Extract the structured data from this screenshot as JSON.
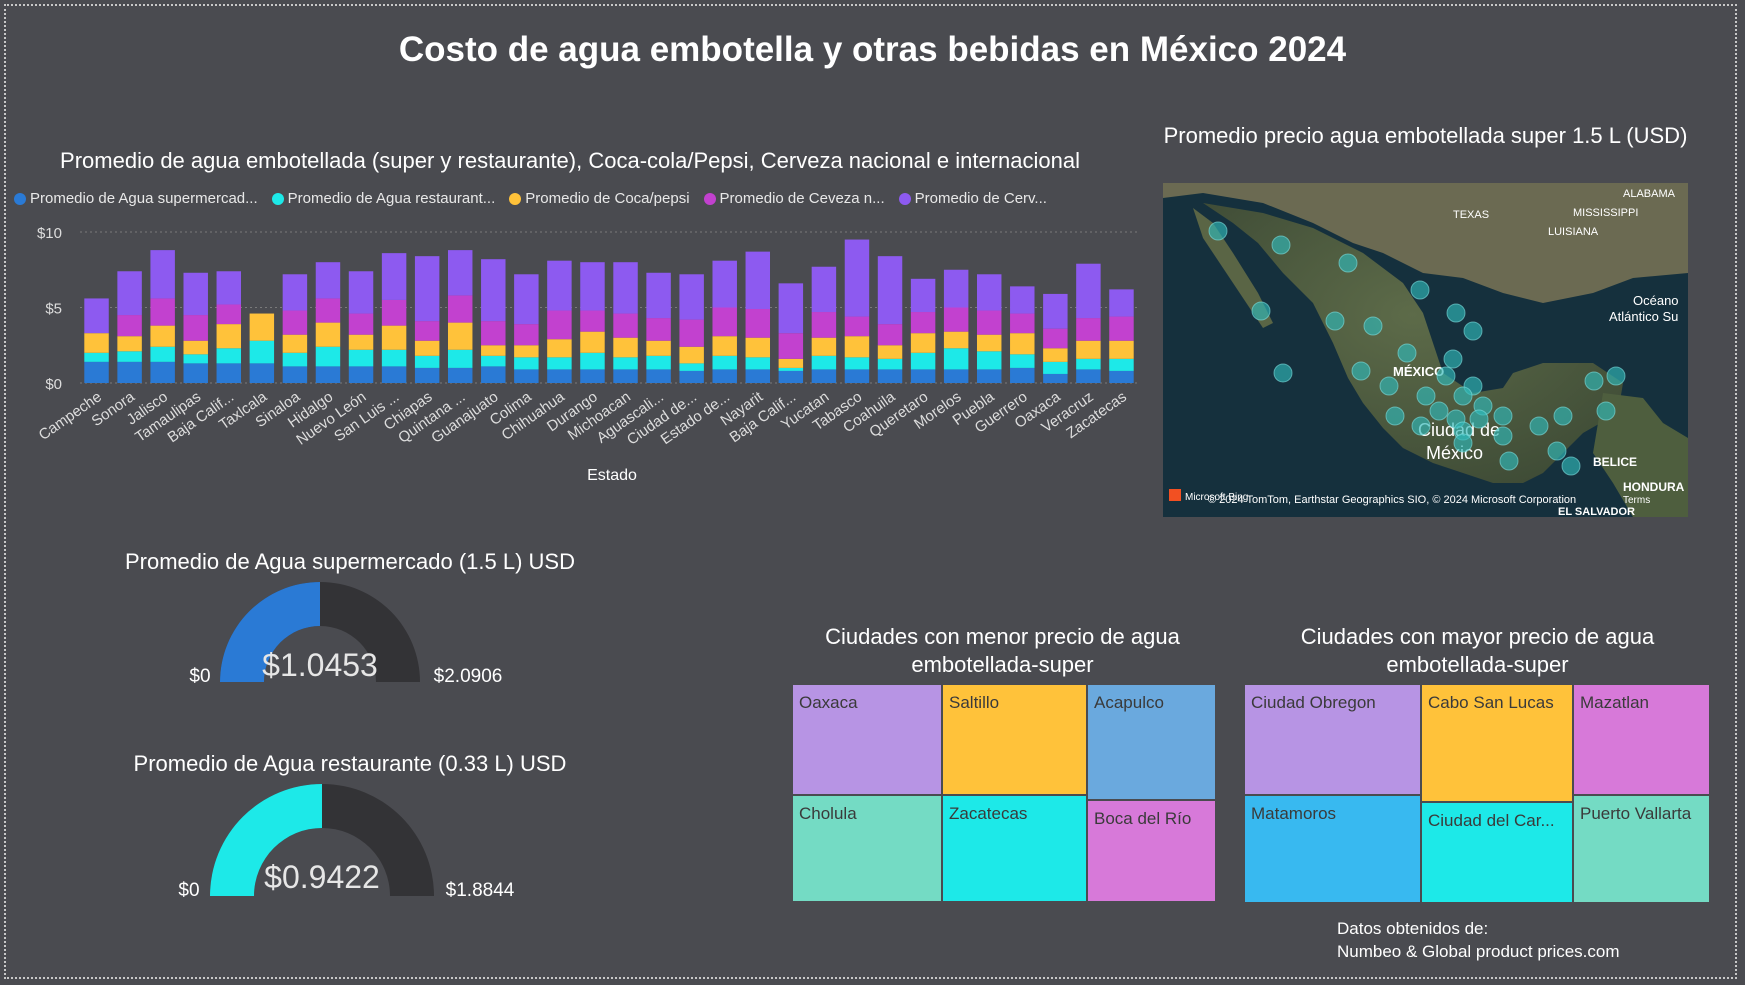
{
  "title": "Costo de agua embotella y otras bebidas en México 2024",
  "bar_chart": {
    "title": "Promedio de agua embotellada (super y restaurante), Coca-cola/Pepsi, Cerveza nacional e internacional",
    "legend": [
      {
        "label": "Promedio de Agua supermercad...",
        "color": "#2a7ad5"
      },
      {
        "label": "Promedio de Agua restaurant...",
        "color": "#1de9e8"
      },
      {
        "label": "Promedio de Coca/pepsi",
        "color": "#ffc23a"
      },
      {
        "label": "Promedio de Ceveza n...",
        "color": "#c241cf"
      },
      {
        "label": "Promedio de Cerv...",
        "color": "#8d5af0"
      }
    ],
    "y_ticks": [
      "$10",
      "$5",
      "$0"
    ],
    "xlabel": "Estado"
  },
  "chart_data": {
    "type": "bar",
    "stacked": true,
    "categories": [
      "Campeche",
      "Sonora",
      "Jalisco",
      "Tamaulipas",
      "Baja Calif...",
      "Taxlcala",
      "Sinaloa",
      "Hidalgo",
      "Nuevo León",
      "San Luis ...",
      "Chiapas",
      "Quintana ...",
      "Guanajuato",
      "Colima",
      "Chihuahua",
      "Durango",
      "Michoacan",
      "Aguascali...",
      "Ciudad de...",
      "Estado de...",
      "Nayarit",
      "Baja Calif...",
      "Yucatan",
      "Tabasco",
      "Coahuila",
      "Queretaro",
      "Morelos",
      "Puebla",
      "Guerrero",
      "Oaxaca",
      "Veracruz",
      "Zacatecas"
    ],
    "series": [
      {
        "name": "Promedio de Agua supermercad...",
        "values": [
          1.4,
          1.4,
          1.4,
          1.3,
          1.3,
          1.3,
          1.1,
          1.1,
          1.1,
          1.1,
          1.0,
          1.0,
          1.1,
          0.9,
          0.9,
          0.9,
          0.9,
          0.9,
          0.8,
          0.9,
          0.9,
          0.8,
          0.9,
          0.9,
          0.9,
          0.9,
          0.9,
          0.9,
          1.0,
          0.6,
          0.9,
          0.8
        ]
      },
      {
        "name": "Promedio de Agua restaurant...",
        "values": [
          0.6,
          0.7,
          1.0,
          0.6,
          1.0,
          1.5,
          0.9,
          1.3,
          1.1,
          1.1,
          0.8,
          1.2,
          0.7,
          0.8,
          0.8,
          1.1,
          0.8,
          0.9,
          0.5,
          0.9,
          0.8,
          0.2,
          0.9,
          0.8,
          0.7,
          1.1,
          1.4,
          1.2,
          0.9,
          0.8,
          0.7,
          0.8
        ]
      },
      {
        "name": "Promedio de Coca/pepsi",
        "values": [
          1.3,
          1.0,
          1.4,
          0.9,
          1.6,
          1.8,
          1.2,
          1.6,
          1.0,
          1.6,
          1.0,
          1.8,
          0.7,
          0.8,
          1.2,
          1.4,
          1.3,
          1.0,
          1.1,
          1.3,
          1.3,
          0.6,
          1.2,
          1.4,
          0.9,
          1.3,
          1.1,
          1.1,
          1.4,
          0.9,
          1.2,
          1.2
        ]
      },
      {
        "name": "Promedio de Ceveza n...",
        "values": [
          0,
          1.4,
          1.8,
          1.7,
          1.3,
          0,
          1.6,
          1.6,
          1.4,
          1.7,
          1.3,
          1.8,
          1.6,
          1.4,
          1.9,
          1.4,
          1.6,
          1.5,
          1.8,
          1.9,
          1.9,
          1.7,
          1.7,
          1.3,
          1.4,
          1.4,
          1.6,
          1.6,
          1.3,
          1.3,
          1.5,
          1.6
        ]
      },
      {
        "name": "Promedio de Cerv...",
        "values": [
          2.3,
          2.9,
          3.2,
          2.8,
          2.2,
          0,
          2.4,
          2.4,
          2.8,
          3.1,
          4.3,
          3.0,
          4.1,
          3.3,
          3.3,
          3.2,
          3.4,
          3.0,
          3.0,
          3.1,
          3.8,
          3.3,
          3.0,
          5.1,
          4.5,
          2.2,
          2.5,
          2.4,
          1.8,
          2.3,
          3.6,
          1.8
        ]
      }
    ],
    "ylim": [
      0,
      10
    ],
    "xlabel": "Estado"
  },
  "map": {
    "title": "Promedio precio agua embotellada super 1.5 L (USD)",
    "labels": [
      "TEXAS",
      "MISSISSIPPI",
      "LUISIANA",
      "ALABAMA",
      "Océano",
      "Atlántico Su",
      "MÉXICO",
      "Ciudad de",
      "México",
      "BELICE",
      "HONDURA",
      "EL SALVADOR"
    ],
    "attribution": "© 2024 TomTom, Earthstar Geographics SIO, © 2024 Microsoft Corporation",
    "terms": "Terms",
    "brand": "Microsoft Bing"
  },
  "gauges": [
    {
      "title": "Promedio de Agua supermercado (1.5 L) USD",
      "value_label": "$1.0453",
      "min_label": "$0",
      "max_label": "$2.0906",
      "value": 1.0453,
      "max": 2.0906,
      "color": "#2a7ad5"
    },
    {
      "title": "Promedio de Agua restaurante (0.33 L) USD",
      "value_label": "$0.9422",
      "min_label": "$0",
      "max_label": "$1.8844",
      "value": 0.9422,
      "max": 1.8844,
      "color": "#1de9e8"
    }
  ],
  "treemap_low": {
    "title_line1": "Ciudades con menor precio de agua",
    "title_line2": "embotellada-super",
    "tiles": [
      "Oaxaca",
      "Saltillo",
      "Acapulco",
      "Cholula",
      "Zacatecas",
      "Boca del Río"
    ]
  },
  "treemap_high": {
    "title_line1": "Ciudades con mayor precio de agua",
    "title_line2": "embotellada-super",
    "tiles": [
      "Ciudad Obregon",
      "Cabo San Lucas",
      "Mazatlan",
      "Matamoros",
      "Ciudad del Car...",
      "Puerto Vallarta"
    ]
  },
  "source": {
    "line1": "Datos obtenidos de:",
    "line2": "Numbeo & Global product prices.com"
  }
}
